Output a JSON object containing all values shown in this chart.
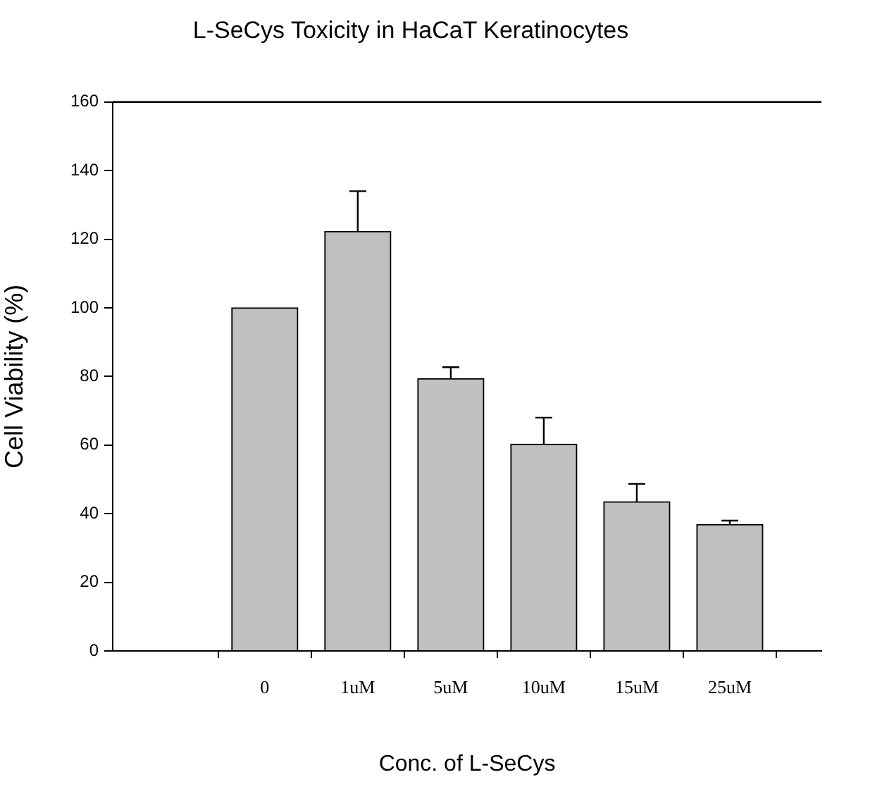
{
  "chart_data": {
    "type": "bar",
    "title": "L-SeCys Toxicity in HaCaT Keratinocytes",
    "xlabel": "Conc. of L-SeCys",
    "ylabel": "Cell Viability (%)",
    "categories": [
      "0",
      "1uM",
      "5uM",
      "10uM",
      "15uM",
      "25uM"
    ],
    "values": [
      100,
      122.3,
      79.4,
      60.3,
      43.5,
      36.9
    ],
    "errors": [
      null,
      [
        122.3,
        134
      ],
      [
        79.4,
        82.7
      ],
      [
        60.3,
        68
      ],
      [
        43.5,
        48.7
      ],
      [
        36.9,
        38
      ]
    ],
    "color": "#c0c0c0",
    "ylim": [
      0,
      160
    ],
    "yticks": [
      0,
      20,
      40,
      60,
      80,
      100,
      120,
      140,
      160
    ],
    "grid": false,
    "legend": false
  }
}
